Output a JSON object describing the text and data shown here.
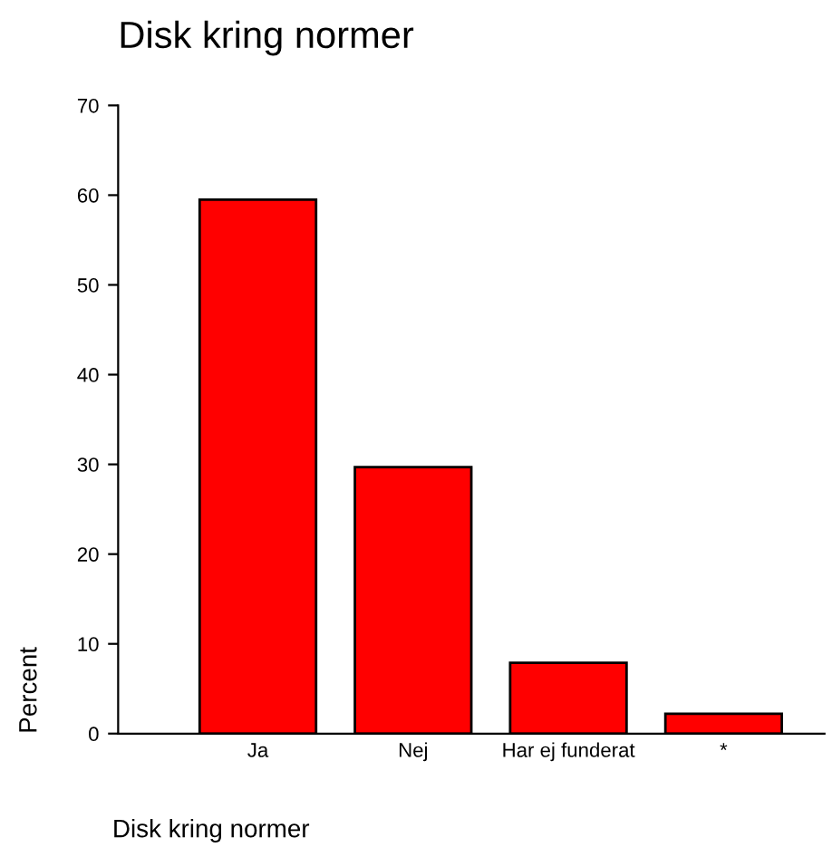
{
  "chart_data": {
    "type": "bar",
    "title": "Disk kring normer",
    "xlabel": "Disk kring normer",
    "ylabel": "Percent",
    "categories": [
      "Ja",
      "Nej",
      "Har ej funderat",
      "*"
    ],
    "values": [
      59.5,
      29.7,
      7.9,
      2.2
    ],
    "color": "#ff0000",
    "ylim": [
      0,
      70
    ],
    "yticks": [
      0,
      10,
      20,
      30,
      40,
      50,
      60,
      70
    ],
    "grid": false
  }
}
